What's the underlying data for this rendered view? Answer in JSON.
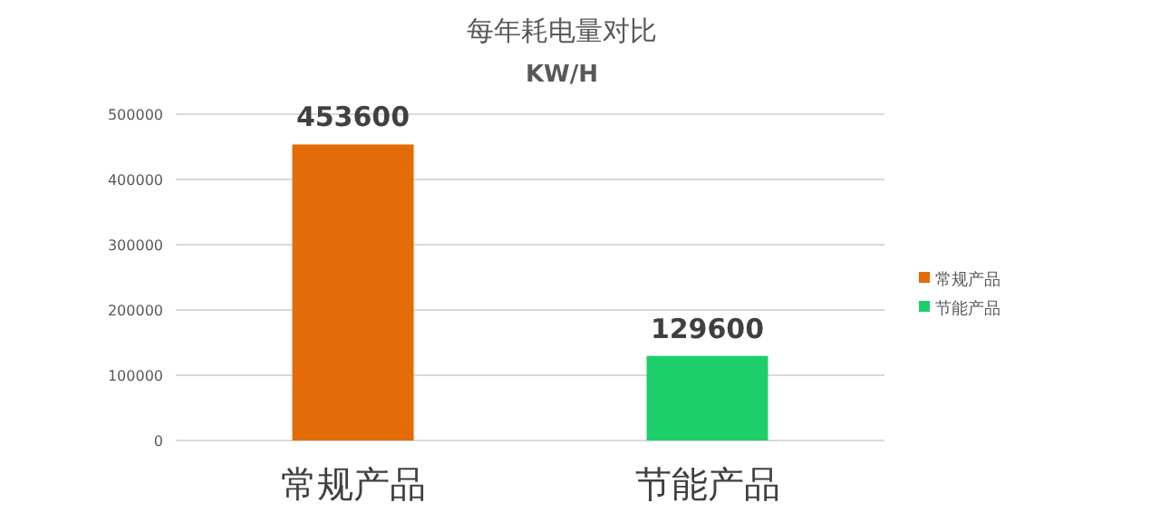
{
  "chart_data": {
    "type": "bar",
    "title": "每年耗电量对比",
    "subtitle": "KW/H",
    "categories": [
      "常规产品",
      "节能产品"
    ],
    "series": [
      {
        "name": "常规产品",
        "color": "#e36c09",
        "values": [
          453600,
          null
        ]
      },
      {
        "name": "节能产品",
        "color": "#1dcf6b",
        "values": [
          null,
          129600
        ]
      }
    ],
    "ylim": [
      0,
      500000
    ],
    "yticks": [
      0,
      100000,
      200000,
      300000,
      400000,
      500000
    ],
    "grid": "y",
    "legend": "right",
    "data_labels": true
  }
}
